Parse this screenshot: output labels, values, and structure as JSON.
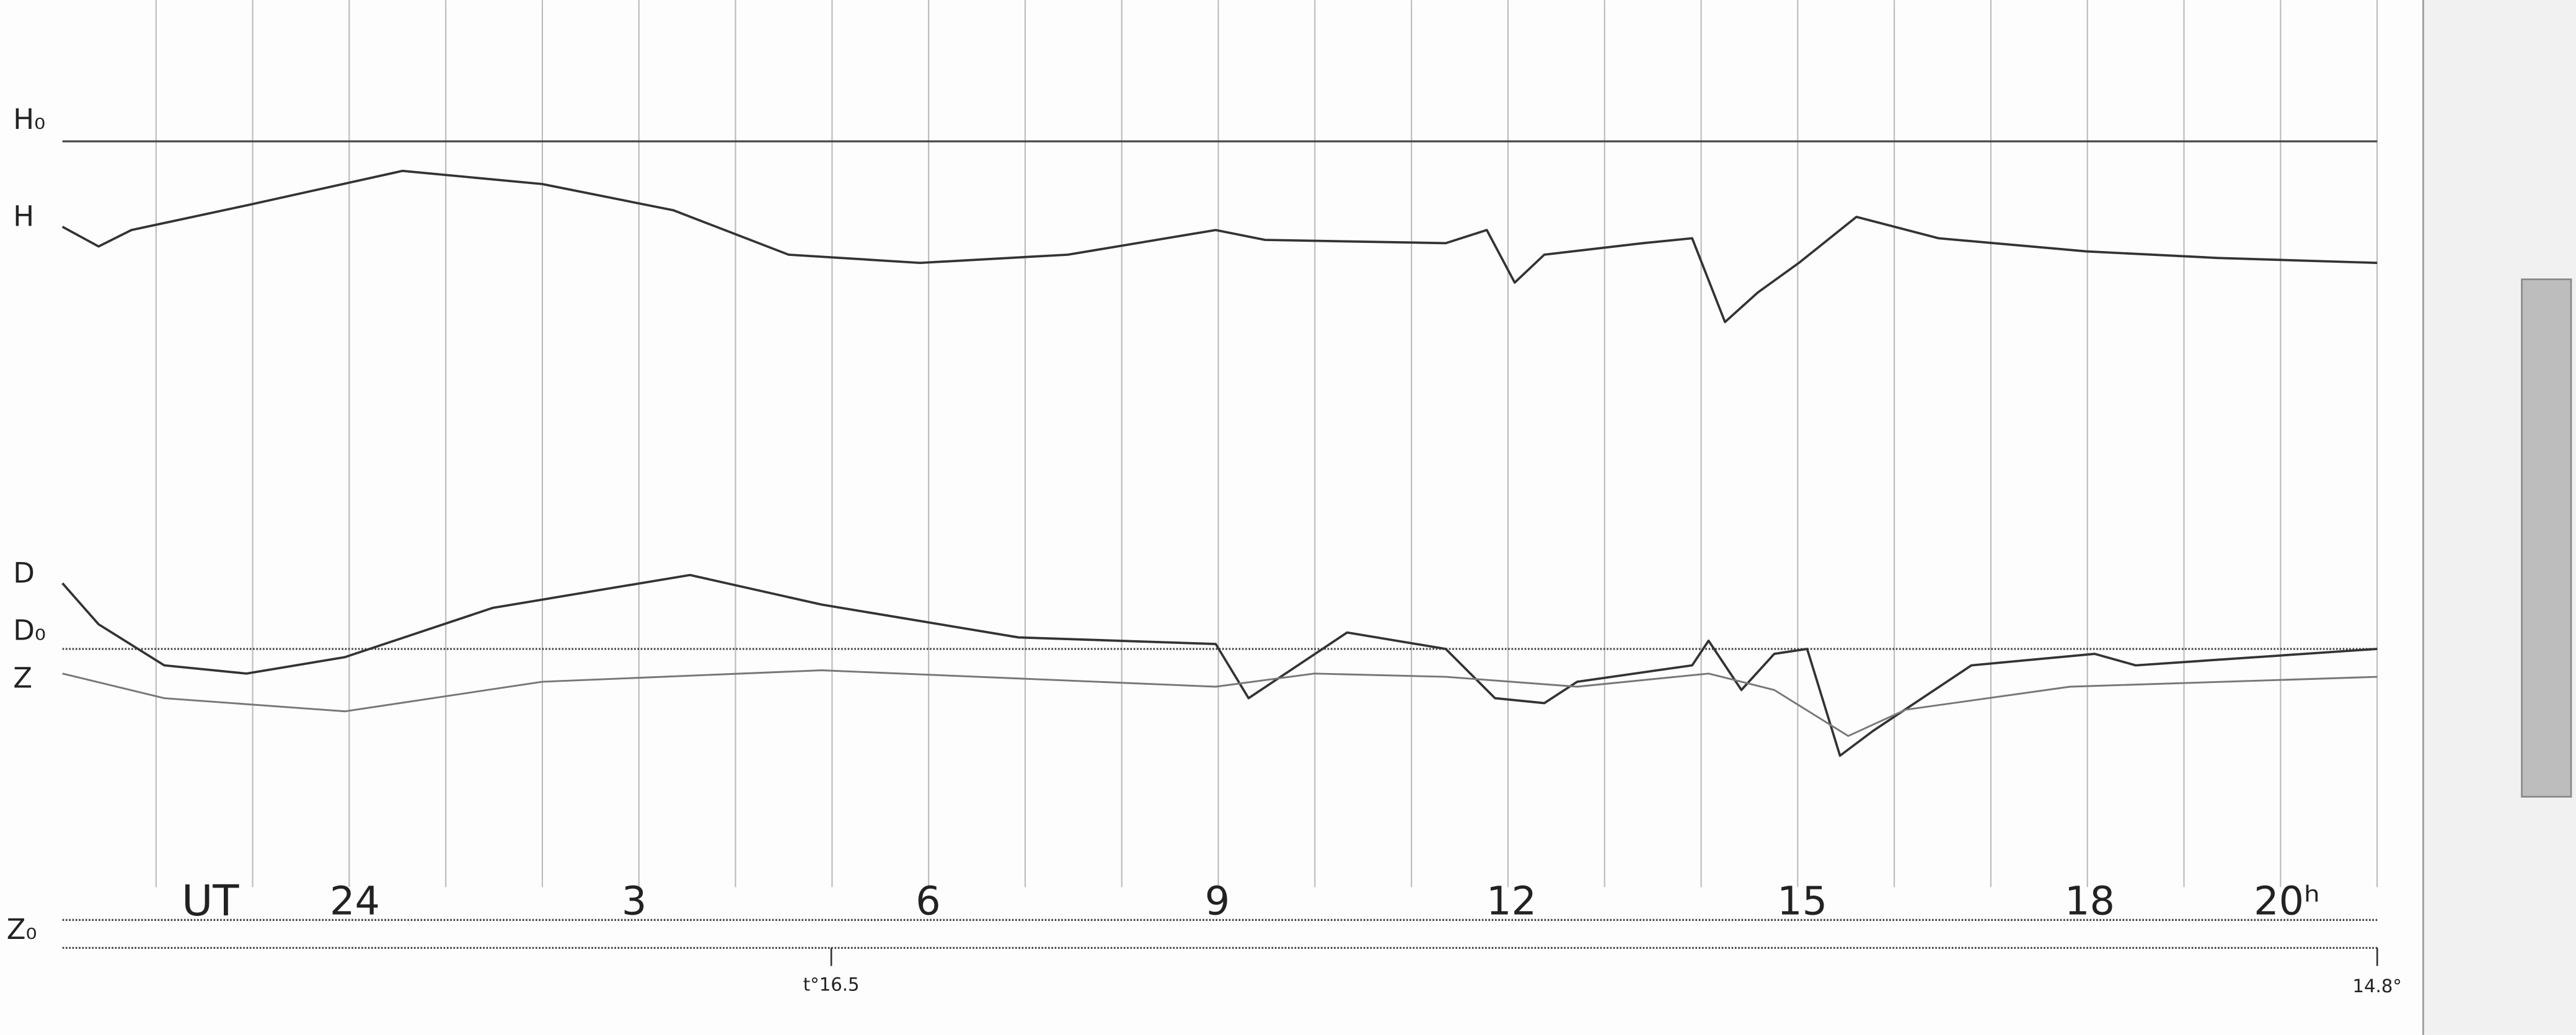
{
  "trace_labels": {
    "h_baseline": "H₀",
    "h": "H",
    "d": "D",
    "d_baseline": "D₀",
    "z": "Z",
    "z_baseline": "Z₀"
  },
  "time_axis": {
    "label": "UT",
    "hours": [
      "24",
      "3",
      "6",
      "9",
      "12",
      "15",
      "18",
      "20ʰ"
    ]
  },
  "temperatures": {
    "start": "t°16.5",
    "end": "14.8°"
  }
}
